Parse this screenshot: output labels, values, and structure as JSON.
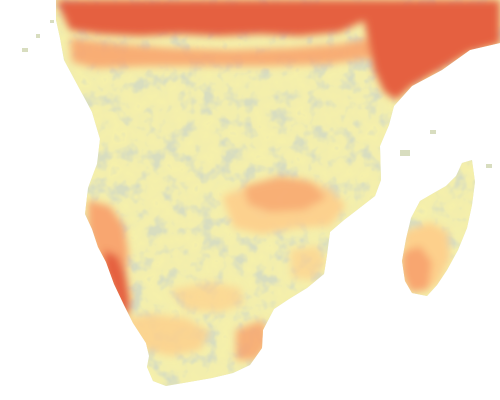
{
  "map": {
    "region": "southern-africa-madagascar",
    "background_color": "#ffffff",
    "palette": {
      "low": "#d8ddbf",
      "mid_low": "#f9f2a8",
      "mid": "#fdd08c",
      "mid_high": "#f8a66f",
      "high": "#e5613f"
    },
    "overlays": [
      "north-high-band",
      "east-horn-high-band",
      "namibian-coast-high-band",
      "central-orange-band",
      "southern-orange-patches",
      "madagascar-east-orange"
    ]
  }
}
